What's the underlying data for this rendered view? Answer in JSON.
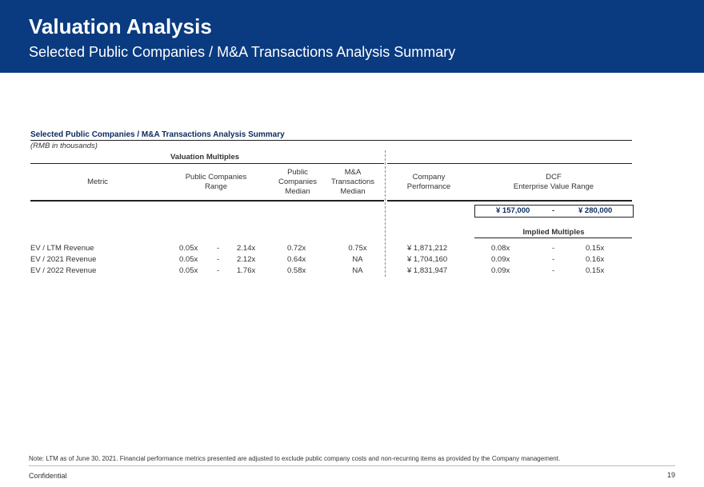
{
  "header": {
    "title": "Valuation Analysis",
    "subtitle": "Selected Public Companies / M&A Transactions Analysis Summary"
  },
  "table": {
    "title": "Selected Public Companies / M&A Transactions Analysis Summary",
    "units": "(RMB in thousands)",
    "group_label": "Valuation Multiples",
    "col_metric": "Metric",
    "col_public_range_1": "Public Companies",
    "col_public_range_2": "Range",
    "col_public_median_1": "Public",
    "col_public_median_2": "Companies",
    "col_public_median_3": "Median",
    "col_ma_median_1": "M&A",
    "col_ma_median_2": "Transactions",
    "col_ma_median_3": "Median",
    "col_company_1": "Company",
    "col_company_2": "Performance",
    "col_dcf_1": "DCF",
    "col_dcf_2": "Enterprise Value Range",
    "ev_range_low": "¥ 157,000",
    "ev_range_sep": "-",
    "ev_range_high": "¥ 280,000",
    "implied_label": "Implied Multiples",
    "rows": [
      {
        "metric": "EV / LTM Revenue",
        "pc_low": "0.05x",
        "dash1": "-",
        "pc_high": "2.14x",
        "pc_median": "0.72x",
        "ma_median": "0.75x",
        "company": "¥ 1,871,212",
        "imp_low": "0.08x",
        "dash2": "-",
        "imp_high": "0.15x"
      },
      {
        "metric": "EV / 2021 Revenue",
        "pc_low": "0.05x",
        "dash1": "-",
        "pc_high": "2.12x",
        "pc_median": "0.64x",
        "ma_median": "NA",
        "company": "¥ 1,704,160",
        "imp_low": "0.09x",
        "dash2": "-",
        "imp_high": "0.16x"
      },
      {
        "metric": "EV / 2022 Revenue",
        "pc_low": "0.05x",
        "dash1": "-",
        "pc_high": "1.76x",
        "pc_median": "0.58x",
        "ma_median": "NA",
        "company": "¥ 1,831,947",
        "imp_low": "0.09x",
        "dash2": "-",
        "imp_high": "0.15x"
      }
    ]
  },
  "note": "Note: LTM as of June 30, 2021. Financial performance metrics presented are adjusted to exclude public company costs and non-recurring items as provided by the Company management.",
  "footer": {
    "confidential": "Confidential",
    "page": "19"
  },
  "colors": {
    "header_bg": "#0a3b80",
    "title_text": "#0a2a5e"
  }
}
